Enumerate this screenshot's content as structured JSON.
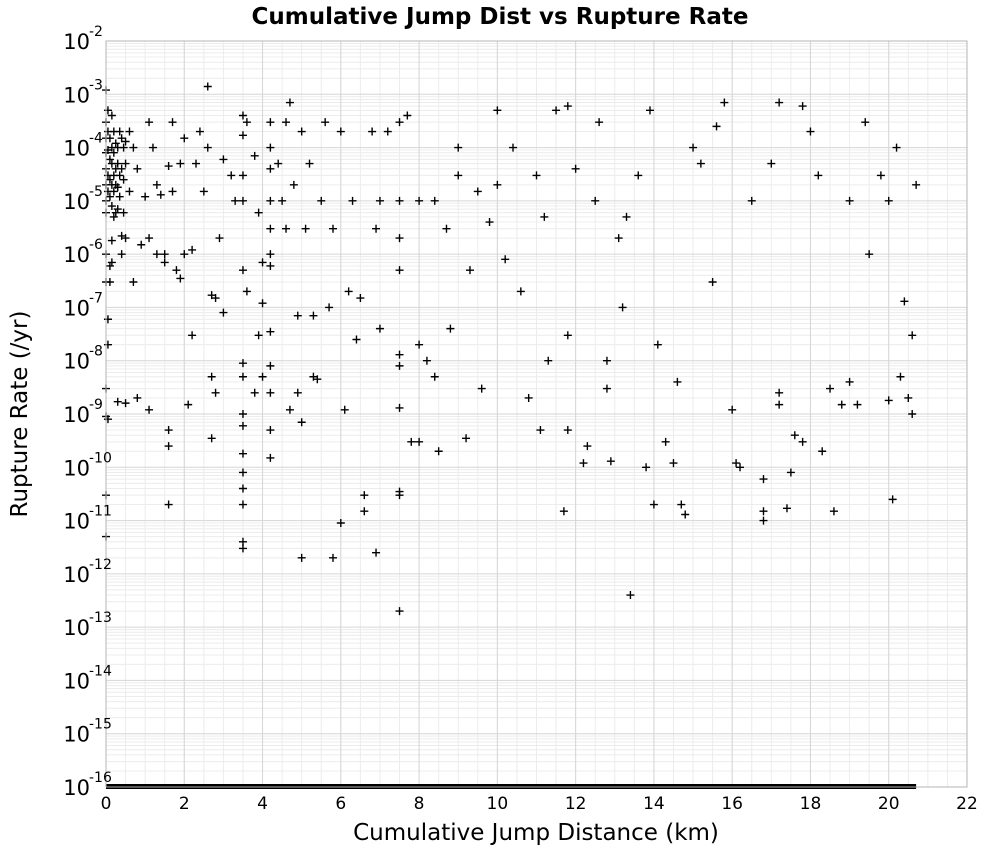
{
  "chart_data": {
    "type": "scatter",
    "title": "Cumulative Jump Dist vs Rupture Rate",
    "xlabel": "Cumulative Jump Distance (km)",
    "ylabel": "Rupture Rate (/yr)",
    "xlim": [
      0,
      22
    ],
    "ylim": [
      1e-16,
      0.01
    ],
    "yscale": "log",
    "grid": true,
    "marker": "plus",
    "marker_color": "#000000",
    "x_ticks": [
      "0",
      "2",
      "4",
      "6",
      "8",
      "10",
      "12",
      "14",
      "16",
      "18",
      "20",
      "22"
    ],
    "y_ticks": [
      {
        "base": "10",
        "exp": "-2"
      },
      {
        "base": "10",
        "exp": "-3"
      },
      {
        "base": "10",
        "exp": "-4"
      },
      {
        "base": "10",
        "exp": "-5"
      },
      {
        "base": "10",
        "exp": "-6"
      },
      {
        "base": "10",
        "exp": "-7"
      },
      {
        "base": "10",
        "exp": "-8"
      },
      {
        "base": "10",
        "exp": "-9"
      },
      {
        "base": "10",
        "exp": "-10"
      },
      {
        "base": "10",
        "exp": "-11"
      },
      {
        "base": "10",
        "exp": "-12"
      },
      {
        "base": "10",
        "exp": "-13"
      },
      {
        "base": "10",
        "exp": "-14"
      },
      {
        "base": "10",
        "exp": "-15"
      },
      {
        "base": "10",
        "exp": "-16"
      }
    ],
    "points": [
      [
        0.0,
        0.0012
      ],
      [
        0.0,
        0.0003
      ],
      [
        0.0,
        0.00015
      ],
      [
        0.0,
        8e-05
      ],
      [
        0.0,
        4e-05
      ],
      [
        0.0,
        2e-05
      ],
      [
        0.0,
        1e-05
      ],
      [
        0.0,
        6e-06
      ],
      [
        0.0,
        1e-06
      ],
      [
        0.0,
        3e-07
      ],
      [
        0.0,
        3e-09
      ],
      [
        0.0,
        9e-10
      ],
      [
        0.0,
        3e-11
      ],
      [
        0.0,
        5e-12
      ],
      [
        0.05,
        0.0005
      ],
      [
        0.05,
        0.0002
      ],
      [
        0.05,
        9e-05
      ],
      [
        0.05,
        3e-05
      ],
      [
        0.05,
        1.5e-05
      ],
      [
        0.05,
        6e-08
      ],
      [
        0.05,
        2e-08
      ],
      [
        0.05,
        8e-10
      ],
      [
        0.1,
        0.00015
      ],
      [
        0.1,
        6e-05
      ],
      [
        0.1,
        2.5e-05
      ],
      [
        0.1,
        1.2e-05
      ],
      [
        0.1,
        6e-07
      ],
      [
        0.1,
        3e-07
      ],
      [
        0.15,
        0.0004
      ],
      [
        0.15,
        0.0001
      ],
      [
        0.15,
        5e-05
      ],
      [
        0.15,
        2e-05
      ],
      [
        0.15,
        8e-06
      ],
      [
        0.15,
        1.8e-06
      ],
      [
        0.15,
        7e-07
      ],
      [
        0.2,
        0.0002
      ],
      [
        0.2,
        8e-05
      ],
      [
        0.2,
        3e-05
      ],
      [
        0.2,
        1.5e-05
      ],
      [
        0.2,
        5e-06
      ],
      [
        0.25,
        0.00012
      ],
      [
        0.25,
        4e-05
      ],
      [
        0.25,
        2e-05
      ],
      [
        0.25,
        6e-06
      ],
      [
        0.3,
        0.0001
      ],
      [
        0.3,
        5e-05
      ],
      [
        0.3,
        1.8e-05
      ],
      [
        0.3,
        7e-06
      ],
      [
        0.3,
        1.7e-09
      ],
      [
        0.35,
        0.0002
      ],
      [
        0.35,
        3e-05
      ],
      [
        0.35,
        1.2e-05
      ],
      [
        0.4,
        0.00015
      ],
      [
        0.4,
        4e-05
      ],
      [
        0.4,
        2.2e-06
      ],
      [
        0.4,
        1e-06
      ],
      [
        0.45,
        0.0001
      ],
      [
        0.45,
        2.5e-05
      ],
      [
        0.45,
        6e-06
      ],
      [
        0.5,
        0.00013
      ],
      [
        0.5,
        5e-05
      ],
      [
        0.5,
        2e-06
      ],
      [
        0.5,
        1.6e-09
      ],
      [
        0.6,
        0.0002
      ],
      [
        0.6,
        1.5e-05
      ],
      [
        0.7,
        0.0001
      ],
      [
        0.7,
        3e-07
      ],
      [
        0.8,
        4e-05
      ],
      [
        0.8,
        2e-09
      ],
      [
        0.9,
        1.5e-06
      ],
      [
        1.0,
        1.2e-05
      ],
      [
        1.1,
        0.0003
      ],
      [
        1.1,
        2e-06
      ],
      [
        1.1,
        1.2e-09
      ],
      [
        1.2,
        0.0001
      ],
      [
        1.3,
        2e-05
      ],
      [
        1.3,
        1e-06
      ],
      [
        1.4,
        1.3e-05
      ],
      [
        1.5,
        1e-06
      ],
      [
        1.5,
        7e-07
      ],
      [
        1.6,
        4.5e-05
      ],
      [
        1.6,
        5e-10
      ],
      [
        1.6,
        2.5e-10
      ],
      [
        1.6,
        2e-11
      ],
      [
        1.7,
        0.0003
      ],
      [
        1.7,
        1.5e-05
      ],
      [
        1.8,
        5e-07
      ],
      [
        1.9,
        5e-05
      ],
      [
        1.9,
        3.5e-07
      ],
      [
        2.0,
        0.00015
      ],
      [
        2.0,
        1e-06
      ],
      [
        2.1,
        1.5e-09
      ],
      [
        2.2,
        1.2e-06
      ],
      [
        2.2,
        3e-08
      ],
      [
        2.3,
        5e-05
      ],
      [
        2.4,
        0.0002
      ],
      [
        2.5,
        1.5e-05
      ],
      [
        2.6,
        0.0014
      ],
      [
        2.6,
        0.0001
      ],
      [
        2.7,
        1.7e-07
      ],
      [
        2.7,
        5e-09
      ],
      [
        2.7,
        3.5e-10
      ],
      [
        2.8,
        1.5e-07
      ],
      [
        2.8,
        2.5e-09
      ],
      [
        2.9,
        2e-06
      ],
      [
        3.0,
        6e-05
      ],
      [
        3.0,
        8e-08
      ],
      [
        3.2,
        3e-05
      ],
      [
        3.3,
        1e-05
      ],
      [
        3.5,
        0.0004
      ],
      [
        3.5,
        0.00017
      ],
      [
        3.5,
        3e-05
      ],
      [
        3.5,
        1e-05
      ],
      [
        3.5,
        5e-07
      ],
      [
        3.5,
        9e-09
      ],
      [
        3.5,
        5e-09
      ],
      [
        3.5,
        1e-09
      ],
      [
        3.5,
        6e-10
      ],
      [
        3.5,
        1.8e-10
      ],
      [
        3.5,
        8e-11
      ],
      [
        3.5,
        4e-11
      ],
      [
        3.5,
        2e-11
      ],
      [
        3.5,
        4e-12
      ],
      [
        3.5,
        3e-12
      ],
      [
        3.6,
        0.0003
      ],
      [
        3.6,
        2e-07
      ],
      [
        3.8,
        7e-05
      ],
      [
        3.8,
        2.5e-09
      ],
      [
        3.9,
        6e-06
      ],
      [
        3.9,
        3e-08
      ],
      [
        4.0,
        7e-07
      ],
      [
        4.0,
        1.2e-07
      ],
      [
        4.0,
        5e-09
      ],
      [
        4.2,
        0.0003
      ],
      [
        4.2,
        0.0001
      ],
      [
        4.2,
        4e-05
      ],
      [
        4.2,
        1e-05
      ],
      [
        4.2,
        3e-06
      ],
      [
        4.2,
        1e-06
      ],
      [
        4.2,
        6e-07
      ],
      [
        4.2,
        3.5e-08
      ],
      [
        4.2,
        8e-09
      ],
      [
        4.2,
        2.5e-09
      ],
      [
        4.2,
        5e-10
      ],
      [
        4.2,
        1.5e-10
      ],
      [
        4.4,
        5e-05
      ],
      [
        4.5,
        1e-05
      ],
      [
        4.6,
        0.0003
      ],
      [
        4.6,
        3e-06
      ],
      [
        4.7,
        0.0007
      ],
      [
        4.7,
        1.2e-09
      ],
      [
        4.8,
        2e-05
      ],
      [
        4.9,
        7e-08
      ],
      [
        4.9,
        2.5e-09
      ],
      [
        5.0,
        0.0002
      ],
      [
        5.0,
        7e-10
      ],
      [
        5.0,
        2e-12
      ],
      [
        5.1,
        3e-06
      ],
      [
        5.2,
        5e-05
      ],
      [
        5.3,
        7e-08
      ],
      [
        5.3,
        5e-09
      ],
      [
        5.4,
        4.5e-09
      ],
      [
        5.5,
        1e-05
      ],
      [
        5.6,
        0.0003
      ],
      [
        5.7,
        1e-07
      ],
      [
        5.8,
        3e-06
      ],
      [
        5.8,
        2e-12
      ],
      [
        6.0,
        0.0002
      ],
      [
        6.0,
        9e-12
      ],
      [
        6.1,
        1.2e-09
      ],
      [
        6.2,
        2e-07
      ],
      [
        6.3,
        1e-05
      ],
      [
        6.4,
        2.5e-08
      ],
      [
        6.5,
        1.5e-07
      ],
      [
        6.6,
        3e-11
      ],
      [
        6.6,
        1.5e-11
      ],
      [
        6.8,
        0.0002
      ],
      [
        6.9,
        3e-06
      ],
      [
        6.9,
        2.5e-12
      ],
      [
        7.0,
        4e-08
      ],
      [
        7.0,
        1e-05
      ],
      [
        7.2,
        0.0002
      ],
      [
        7.5,
        0.0003
      ],
      [
        7.5,
        1e-05
      ],
      [
        7.5,
        2e-06
      ],
      [
        7.5,
        5e-07
      ],
      [
        7.5,
        1.3e-08
      ],
      [
        7.5,
        8e-09
      ],
      [
        7.5,
        1.3e-09
      ],
      [
        7.5,
        3.5e-11
      ],
      [
        7.5,
        3e-11
      ],
      [
        7.5,
        2e-13
      ],
      [
        7.7,
        0.0004
      ],
      [
        7.8,
        3e-10
      ],
      [
        8.0,
        1e-05
      ],
      [
        8.0,
        2e-08
      ],
      [
        8.0,
        3e-10
      ],
      [
        8.2,
        1e-08
      ],
      [
        8.4,
        1e-05
      ],
      [
        8.4,
        5e-09
      ],
      [
        8.5,
        2e-10
      ],
      [
        8.7,
        3e-06
      ],
      [
        8.8,
        4e-08
      ],
      [
        9.0,
        0.0001
      ],
      [
        9.0,
        3e-05
      ],
      [
        9.2,
        3.5e-10
      ],
      [
        9.3,
        5e-07
      ],
      [
        9.5,
        1.5e-05
      ],
      [
        9.6,
        3e-09
      ],
      [
        9.8,
        4e-06
      ],
      [
        10.0,
        0.0005
      ],
      [
        10.0,
        2e-05
      ],
      [
        10.2,
        8e-07
      ],
      [
        10.4,
        0.0001
      ],
      [
        10.6,
        2e-07
      ],
      [
        10.8,
        2e-09
      ],
      [
        11.0,
        3e-05
      ],
      [
        11.1,
        5e-10
      ],
      [
        11.2,
        5e-06
      ],
      [
        11.3,
        1e-08
      ],
      [
        11.5,
        0.0005
      ],
      [
        11.7,
        1.5e-11
      ],
      [
        11.8,
        0.0006
      ],
      [
        11.8,
        5e-10
      ],
      [
        11.8,
        3e-08
      ],
      [
        12.0,
        4e-05
      ],
      [
        12.2,
        1.2e-10
      ],
      [
        12.3,
        2.5e-10
      ],
      [
        12.5,
        1e-05
      ],
      [
        12.6,
        0.0003
      ],
      [
        12.8,
        1e-08
      ],
      [
        12.8,
        3e-09
      ],
      [
        12.9,
        1.3e-10
      ],
      [
        13.1,
        2e-06
      ],
      [
        13.2,
        1e-07
      ],
      [
        13.3,
        5e-06
      ],
      [
        13.4,
        4e-13
      ],
      [
        13.6,
        3e-05
      ],
      [
        13.8,
        1e-10
      ],
      [
        13.9,
        0.0005
      ],
      [
        14.0,
        2e-11
      ],
      [
        14.1,
        2e-08
      ],
      [
        14.3,
        3e-10
      ],
      [
        14.5,
        1.2e-10
      ],
      [
        14.6,
        4e-09
      ],
      [
        14.7,
        2e-11
      ],
      [
        14.8,
        1.3e-11
      ],
      [
        15.0,
        0.0001
      ],
      [
        15.2,
        5e-05
      ],
      [
        15.5,
        3e-07
      ],
      [
        15.6,
        0.00025
      ],
      [
        15.8,
        0.0007
      ],
      [
        16.0,
        1.2e-09
      ],
      [
        16.1,
        1.2e-10
      ],
      [
        16.2,
        1e-10
      ],
      [
        16.5,
        1e-05
      ],
      [
        16.8,
        6e-11
      ],
      [
        16.8,
        1.5e-11
      ],
      [
        16.8,
        1e-11
      ],
      [
        17.0,
        5e-05
      ],
      [
        17.2,
        0.0007
      ],
      [
        17.2,
        2.5e-09
      ],
      [
        17.2,
        1.5e-09
      ],
      [
        17.4,
        1.7e-11
      ],
      [
        17.5,
        8e-11
      ],
      [
        17.6,
        4e-10
      ],
      [
        17.8,
        3e-10
      ],
      [
        17.8,
        0.0006
      ],
      [
        18.0,
        0.0002
      ],
      [
        18.2,
        3e-05
      ],
      [
        18.3,
        2e-10
      ],
      [
        18.5,
        3e-09
      ],
      [
        18.6,
        1.5e-11
      ],
      [
        18.8,
        1.5e-09
      ],
      [
        19.0,
        1e-05
      ],
      [
        19.0,
        4e-09
      ],
      [
        19.2,
        1.5e-09
      ],
      [
        19.4,
        0.0003
      ],
      [
        19.5,
        1e-06
      ],
      [
        19.8,
        3e-05
      ],
      [
        20.0,
        1e-05
      ],
      [
        20.0,
        1.8e-09
      ],
      [
        20.1,
        2.5e-11
      ],
      [
        20.2,
        0.0001
      ],
      [
        20.3,
        5e-09
      ],
      [
        20.4,
        1.3e-07
      ],
      [
        20.5,
        2e-09
      ],
      [
        20.6,
        1e-09
      ],
      [
        20.6,
        3e-08
      ],
      [
        20.7,
        2e-05
      ]
    ],
    "baseline_band": {
      "x_start": 0,
      "x_end": 20.7,
      "y": 1e-16
    }
  }
}
